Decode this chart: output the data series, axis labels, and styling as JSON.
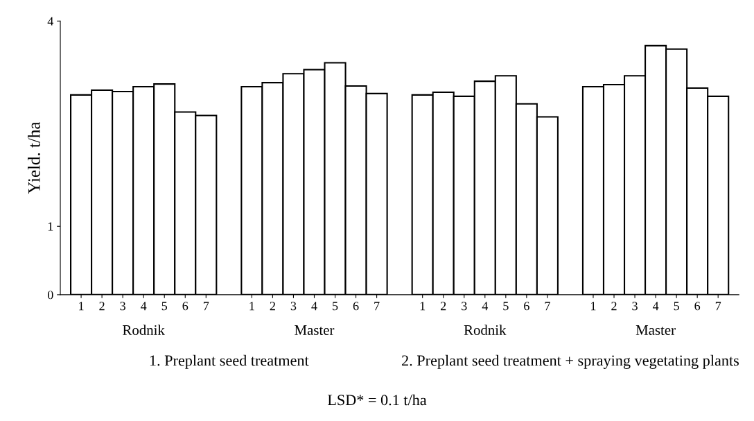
{
  "chart_data": {
    "type": "bar",
    "ylabel": "Yield. t/ha",
    "categories": [
      "1",
      "2",
      "3",
      "4",
      "5",
      "6",
      "7",
      "1",
      "2",
      "3",
      "4",
      "5",
      "6",
      "7",
      "1",
      "2",
      "3",
      "4",
      "5",
      "6",
      "7",
      "1",
      "2",
      "3",
      "4",
      "5",
      "6",
      "7"
    ],
    "values": [
      2.92,
      2.99,
      2.97,
      3.04,
      3.08,
      2.67,
      2.62,
      3.04,
      3.1,
      3.23,
      3.29,
      3.39,
      3.05,
      2.94,
      2.92,
      2.96,
      2.9,
      3.12,
      3.2,
      2.79,
      2.6,
      3.04,
      3.07,
      3.2,
      3.64,
      3.59,
      3.02,
      2.9
    ],
    "color": "#ffffff",
    "ylim": [
      0,
      4
    ],
    "yticks": [
      0,
      1,
      4
    ],
    "annotations": [
      "Rodnik",
      "Master",
      "Rodnik",
      "Master",
      "1. Preplant seed treatment",
      "2. Preplant seed treatment + spraying vegetating plants",
      "LSD* = 0.1 t/ha"
    ]
  }
}
